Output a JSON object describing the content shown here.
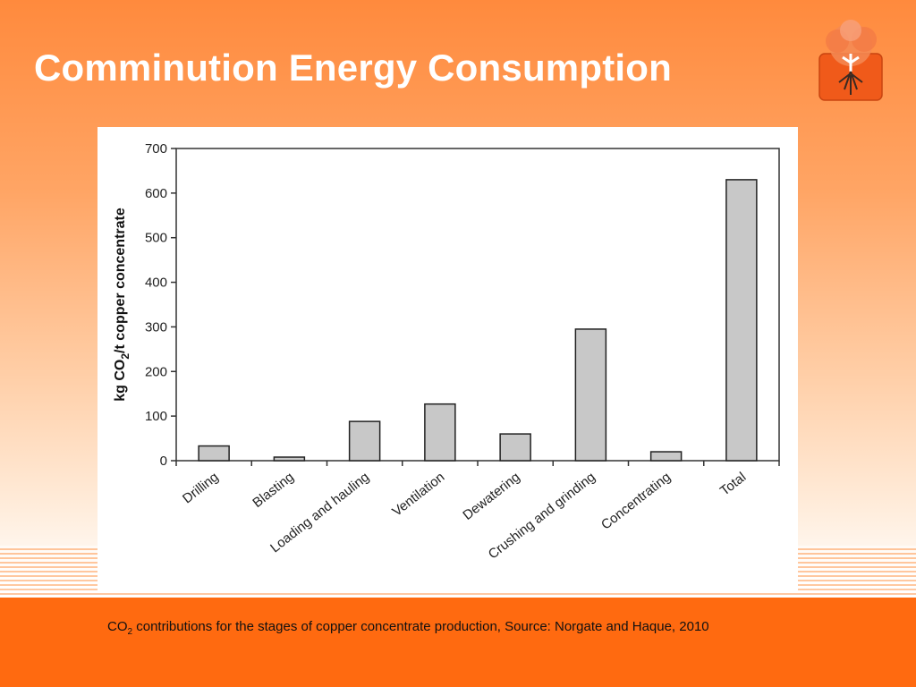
{
  "slide": {
    "title": "Comminution Energy Consumption",
    "caption_prefix": "CO",
    "caption_sub": "2",
    "caption_rest": " contributions for the stages of copper concentrate production, Source: Norgate and Haque, 2010"
  },
  "colors": {
    "title": "#ffffff",
    "footer": "#ff6a10",
    "bar_fill": "#c8c8c8",
    "bar_stroke": "#222222"
  },
  "chart_data": {
    "type": "bar",
    "title": "",
    "xlabel": "",
    "ylabel": "kg CO2/t copper concentrate",
    "ylabel_parts": {
      "a": "kg CO",
      "sub": "2",
      "b": "/t copper concentrate"
    },
    "categories": [
      "Drilling",
      "Blasting",
      "Loading and hauling",
      "Ventilation",
      "Dewatering",
      "Crushing and grinding",
      "Concentrating",
      "Total"
    ],
    "values": [
      33,
      8,
      88,
      127,
      60,
      295,
      20,
      630
    ],
    "ylim": [
      0,
      700
    ],
    "yticks": [
      0,
      100,
      200,
      300,
      400,
      500,
      600,
      700
    ],
    "grid": false,
    "legend": "none"
  }
}
